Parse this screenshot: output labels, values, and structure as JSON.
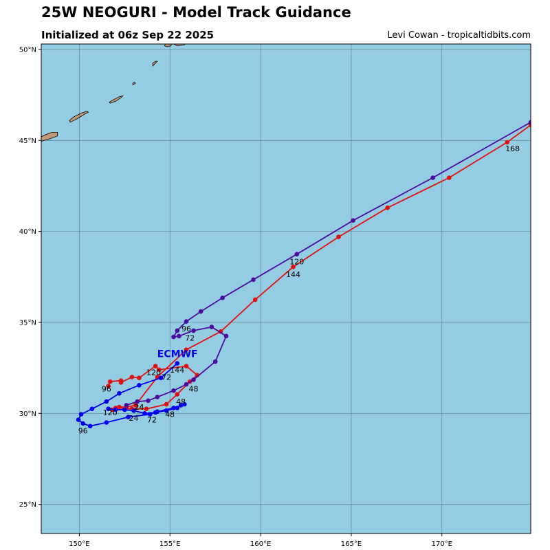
{
  "header": {
    "title": "25W NEOGURI - Model Track Guidance",
    "subtitle": "Initialized at 06z Sep 22 2025",
    "credit": "Levi Cowan - tropicaltidbits.com"
  },
  "map": {
    "lon_range": [
      147.9,
      174.9
    ],
    "lat_range": [
      23.4,
      50.3
    ],
    "ocean_color": "#94cde3",
    "land_color": "#c09878",
    "grid_color": "#3a4a55",
    "lon_ticks": [
      {
        "value": 150,
        "label": "150°E"
      },
      {
        "value": 155,
        "label": "155°E"
      },
      {
        "value": 160,
        "label": "160°E"
      },
      {
        "value": 165,
        "label": "165°E"
      },
      {
        "value": 170,
        "label": "170°E"
      }
    ],
    "lat_ticks": [
      {
        "value": 25,
        "label": "25°N"
      },
      {
        "value": 30,
        "label": "30°N"
      },
      {
        "value": 35,
        "label": "35°N"
      },
      {
        "value": 40,
        "label": "40°N"
      },
      {
        "value": 45,
        "label": "45°N"
      },
      {
        "value": 50,
        "label": "50°N"
      }
    ],
    "islands": [
      [
        [
          147.9,
          44.95
        ],
        [
          148.4,
          45.1
        ],
        [
          148.8,
          45.25
        ],
        [
          148.8,
          45.45
        ],
        [
          148.5,
          45.45
        ],
        [
          148.1,
          45.3
        ],
        [
          147.9,
          45.2
        ]
      ],
      [
        [
          149.5,
          46.0
        ],
        [
          149.9,
          46.2
        ],
        [
          150.3,
          46.45
        ],
        [
          150.5,
          46.55
        ],
        [
          150.4,
          46.6
        ],
        [
          150.1,
          46.5
        ],
        [
          149.7,
          46.3
        ],
        [
          149.45,
          46.1
        ]
      ],
      [
        [
          151.7,
          47.05
        ],
        [
          152.0,
          47.15
        ],
        [
          152.3,
          47.35
        ],
        [
          152.4,
          47.45
        ],
        [
          152.2,
          47.4
        ],
        [
          151.9,
          47.25
        ],
        [
          151.65,
          47.1
        ]
      ],
      [
        [
          152.95,
          48.05
        ],
        [
          153.1,
          48.15
        ],
        [
          153.05,
          48.2
        ],
        [
          152.95,
          48.15
        ]
      ],
      [
        [
          154.05,
          49.1
        ],
        [
          154.2,
          49.25
        ],
        [
          154.3,
          49.35
        ],
        [
          154.2,
          49.35
        ],
        [
          154.05,
          49.25
        ]
      ],
      [
        [
          154.7,
          50.2
        ],
        [
          154.85,
          50.5
        ],
        [
          155.15,
          50.4
        ],
        [
          155.05,
          50.2
        ],
        [
          154.85,
          50.15
        ]
      ],
      [
        [
          155.2,
          50.3
        ],
        [
          155.5,
          50.4
        ],
        [
          155.9,
          50.4
        ],
        [
          155.8,
          50.25
        ],
        [
          155.4,
          50.2
        ]
      ],
      [
        [
          156.2,
          50.35
        ],
        [
          156.4,
          50.4
        ],
        [
          156.35,
          50.3
        ]
      ]
    ]
  },
  "tracks": [
    {
      "name": "red",
      "color": "#e01010",
      "points": [
        [
          151.6,
          31.5
        ],
        [
          151.7,
          31.75
        ],
        [
          152.3,
          31.8
        ],
        [
          152.3,
          31.7
        ],
        [
          152.9,
          32.0
        ],
        [
          153.3,
          31.95
        ],
        [
          154.2,
          32.6
        ],
        [
          154.4,
          32.4
        ],
        [
          155.9,
          32.6
        ],
        [
          156.5,
          32.1
        ],
        [
          156.1,
          31.75
        ],
        [
          155.4,
          31.05
        ],
        [
          154.8,
          30.5
        ],
        [
          153.7,
          30.25
        ],
        [
          152.9,
          30.25
        ],
        [
          152.0,
          30.3
        ],
        [
          151.8,
          30.2
        ],
        [
          152.2,
          30.35
        ],
        [
          152.6,
          30.35
        ],
        [
          153.1,
          30.45
        ],
        [
          154.3,
          32.0
        ],
        [
          155.9,
          33.5
        ],
        [
          157.8,
          34.5
        ],
        [
          159.7,
          36.25
        ],
        [
          161.8,
          38.05
        ],
        [
          164.3,
          39.7
        ],
        [
          167.0,
          41.3
        ],
        [
          170.4,
          42.95
        ],
        [
          173.6,
          44.9
        ],
        [
          174.9,
          45.85
        ]
      ],
      "labels": [
        {
          "text": "96",
          "lon": 151.5,
          "lat": 31.2
        },
        {
          "text": "24",
          "lon": 153.3,
          "lat": 30.2
        },
        {
          "text": "48",
          "lon": 156.3,
          "lat": 31.2
        },
        {
          "text": "120",
          "lon": 154.1,
          "lat": 32.1
        },
        {
          "text": "144",
          "lon": 161.8,
          "lat": 37.5
        },
        {
          "text": "168",
          "lon": 173.9,
          "lat": 44.4
        }
      ]
    },
    {
      "name": "blue",
      "color": "#0000ee",
      "points": [
        [
          155.4,
          32.75
        ],
        [
          154.5,
          31.95
        ],
        [
          153.3,
          31.55
        ],
        [
          152.2,
          31.1
        ],
        [
          151.5,
          30.65
        ],
        [
          150.7,
          30.25
        ],
        [
          150.1,
          29.95
        ],
        [
          149.95,
          29.65
        ],
        [
          150.2,
          29.45
        ],
        [
          150.6,
          29.3
        ],
        [
          151.5,
          29.5
        ],
        [
          152.7,
          29.8
        ],
        [
          153.9,
          29.95
        ],
        [
          154.3,
          30.1
        ],
        [
          155.2,
          30.3
        ],
        [
          155.8,
          30.5
        ],
        [
          155.6,
          30.45
        ],
        [
          155.4,
          30.3
        ],
        [
          154.8,
          30.15
        ],
        [
          154.2,
          30.05
        ],
        [
          153.6,
          30.0
        ],
        [
          153.0,
          30.15
        ],
        [
          152.5,
          30.2
        ],
        [
          152.0,
          30.2
        ],
        [
          151.6,
          30.25
        ]
      ],
      "labels": [
        {
          "text": "96",
          "lon": 150.2,
          "lat": 28.9
        },
        {
          "text": "24",
          "lon": 153.0,
          "lat": 29.6
        },
        {
          "text": "48",
          "lon": 155.0,
          "lat": 29.8
        },
        {
          "text": "72",
          "lon": 154.0,
          "lat": 29.5
        },
        {
          "text": "72",
          "lon": 154.8,
          "lat": 31.85
        },
        {
          "text": "120",
          "lon": 151.7,
          "lat": 29.9
        },
        {
          "text": "144",
          "lon": 155.4,
          "lat": 32.25
        }
      ]
    },
    {
      "name": "purple",
      "color": "#4b0aa0",
      "points": [
        [
          152.6,
          30.45
        ],
        [
          153.2,
          30.65
        ],
        [
          153.8,
          30.7
        ],
        [
          154.3,
          30.9
        ],
        [
          155.2,
          31.25
        ],
        [
          155.9,
          31.6
        ],
        [
          156.3,
          31.85
        ],
        [
          157.5,
          32.85
        ],
        [
          158.1,
          34.25
        ],
        [
          157.3,
          34.75
        ],
        [
          156.3,
          34.55
        ],
        [
          155.5,
          34.25
        ],
        [
          155.2,
          34.2
        ],
        [
          155.4,
          34.55
        ],
        [
          155.9,
          35.05
        ],
        [
          156.7,
          35.6
        ],
        [
          157.9,
          36.35
        ],
        [
          159.6,
          37.35
        ],
        [
          162.0,
          38.75
        ],
        [
          165.1,
          40.6
        ],
        [
          169.5,
          42.95
        ],
        [
          174.9,
          46.0
        ]
      ],
      "labels": [
        {
          "text": "24",
          "lon": 153.3,
          "lat": 30.2
        },
        {
          "text": "48",
          "lon": 155.6,
          "lat": 30.5
        },
        {
          "text": "72",
          "lon": 156.1,
          "lat": 34.0
        },
        {
          "text": "96",
          "lon": 155.9,
          "lat": 34.5
        },
        {
          "text": "120",
          "lon": 162.0,
          "lat": 38.2
        }
      ]
    }
  ],
  "model_label": {
    "text": "ECMWF",
    "lon": 154.3,
    "lat": 33.1,
    "color": "#0000ee"
  }
}
